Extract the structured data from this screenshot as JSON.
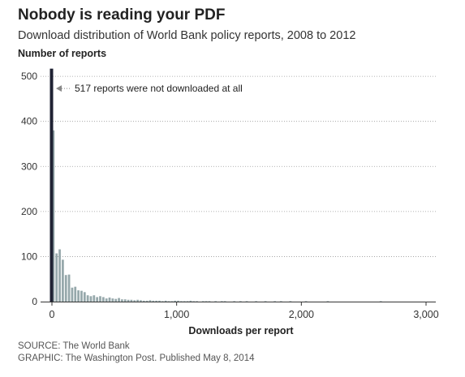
{
  "header": {
    "title": "Nobody is reading your PDF",
    "subtitle": "Download distribution of World Bank policy reports, 2008 to 2012"
  },
  "footer": {
    "source": "SOURCE: The World Bank",
    "graphic": "GRAPHIC: The Washington Post. Published May 8, 2014"
  },
  "colors": {
    "highlight_bar": "#1f2233",
    "bars": "#96a8ab",
    "grid": "#9a9a9a",
    "annotation_arrow": "#888888"
  },
  "chart_data": {
    "type": "bar",
    "ylabel": "Number of reports",
    "xlabel": "Downloads per report",
    "xlim": [
      0,
      3000
    ],
    "ylim": [
      0,
      520
    ],
    "x_ticks": [
      0,
      1000,
      2000,
      3000
    ],
    "x_tick_labels": [
      "0",
      "1,000",
      "2,000",
      "3,000"
    ],
    "y_ticks": [
      0,
      100,
      200,
      300,
      400,
      500
    ],
    "y_tick_labels": [
      "0",
      "100",
      "200",
      "300",
      "400",
      "500"
    ],
    "grid": true,
    "highlight": {
      "x": 0,
      "value": 517
    },
    "annotation": {
      "text": "517 reports were not downloaded at all",
      "x": 0,
      "y": 473
    },
    "bin_width": 25,
    "bin_starts": [
      0,
      25,
      50,
      75,
      100,
      125,
      150,
      175,
      200,
      225,
      250,
      275,
      300,
      325,
      350,
      375,
      400,
      425,
      450,
      475,
      500,
      525,
      550,
      575,
      600,
      625,
      650,
      675,
      700,
      725,
      750,
      775,
      800,
      825,
      850,
      875,
      900,
      925,
      950,
      975,
      1000,
      1025,
      1050,
      1075,
      1100,
      1125,
      1150,
      1175,
      1200,
      1225,
      1250,
      1275,
      1300,
      1325,
      1350,
      1375,
      1400,
      1425,
      1450,
      1475,
      1500,
      1525,
      1550,
      1575,
      1600,
      1625,
      1650,
      1675,
      1700,
      1725,
      1750,
      1775,
      1800,
      1825,
      1850,
      1875,
      1900,
      1925,
      1950,
      1975,
      2000,
      2025,
      2050,
      2075,
      2100,
      2125,
      2150,
      2175,
      2200,
      2225,
      2250,
      2275,
      2300,
      2325,
      2350,
      2375,
      2400,
      2425,
      2450,
      2475,
      2500,
      2525,
      2550,
      2575,
      2600,
      2625,
      2650,
      2675,
      2700,
      2725,
      2750,
      2775,
      2800,
      2825,
      2850,
      2875,
      2900,
      2925,
      2950,
      2975
    ],
    "values": [
      380,
      107,
      116,
      93,
      59,
      60,
      31,
      33,
      25,
      24,
      21,
      14,
      12,
      14,
      10,
      12,
      10,
      7,
      9,
      7,
      6,
      8,
      5,
      5,
      4,
      4,
      3,
      4,
      3,
      2,
      2,
      3,
      2,
      2,
      2,
      1,
      2,
      1,
      1,
      2,
      2,
      1,
      1,
      1,
      2,
      1,
      1,
      0,
      1,
      1,
      1,
      0,
      1,
      0,
      1,
      1,
      0,
      0,
      1,
      0,
      1,
      0,
      1,
      0,
      0,
      1,
      0,
      0,
      1,
      0,
      0,
      1,
      0,
      1,
      0,
      0,
      1,
      0,
      0,
      0,
      0,
      1,
      0,
      0,
      0,
      0,
      0,
      0,
      1,
      0,
      0,
      0,
      0,
      0,
      0,
      0,
      0,
      0,
      0,
      0,
      0,
      0,
      0,
      0,
      0,
      1,
      0,
      0,
      0,
      0,
      0,
      0,
      0,
      0,
      0,
      0,
      0,
      0,
      0,
      0
    ]
  }
}
